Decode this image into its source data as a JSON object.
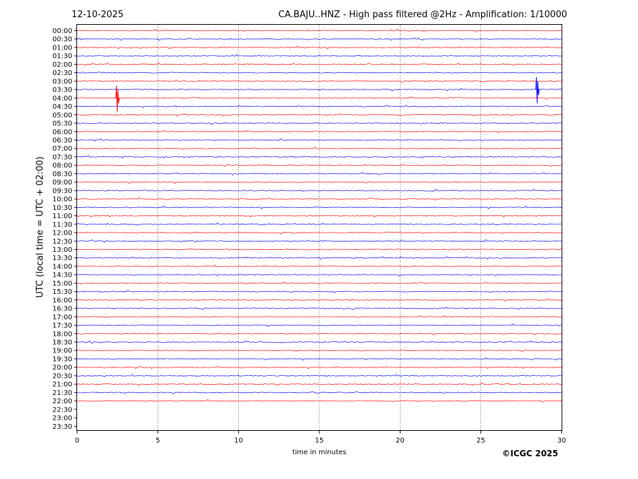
{
  "header": {
    "date": "12-10-2025",
    "title": "CA.BAJU..HNZ - High pass filtered @2Hz - Amplification: 1/10000"
  },
  "footer": {
    "copyright": "©ICGC 2025"
  },
  "chart_data": {
    "type": "line",
    "title": "CA.BAJU..HNZ - High pass filtered @2Hz - Amplification: 1/10000",
    "xlabel": "time in minutes",
    "ylabel": "UTC (local time = UTC + 02:00)",
    "xlim": [
      0,
      30
    ],
    "x_ticks": [
      0,
      5,
      10,
      15,
      20,
      25,
      30
    ],
    "vertical_grid": [
      5,
      10,
      15,
      20,
      25
    ],
    "grid": "vertical dotted lines at 5-minute intervals",
    "row_labels": [
      "00:00",
      "00:30",
      "01:00",
      "01:30",
      "02:00",
      "02:30",
      "03:00",
      "03:30",
      "04:00",
      "04:30",
      "05:00",
      "05:30",
      "06:00",
      "06:30",
      "07:00",
      "07:30",
      "08:00",
      "08:30",
      "09:00",
      "09:30",
      "10:00",
      "10:30",
      "11:00",
      "11:30",
      "12:00",
      "12:30",
      "13:00",
      "13:30",
      "14:00",
      "14:30",
      "15:00",
      "15:30",
      "16:00",
      "16:30",
      "17:00",
      "17:30",
      "18:00",
      "18:30",
      "19:00",
      "19:30",
      "20:00",
      "20:30",
      "21:00",
      "21:30",
      "22:00",
      "22:30",
      "23:00",
      "23:30"
    ],
    "row_colors": [
      "#ff0000",
      "#0000ff"
    ],
    "recorded_rows": 45,
    "events": [
      {
        "row": "04:00",
        "minute": 2.4,
        "note": "spike"
      },
      {
        "row": "03:30",
        "minute": 28.4,
        "note": "spike"
      }
    ]
  }
}
